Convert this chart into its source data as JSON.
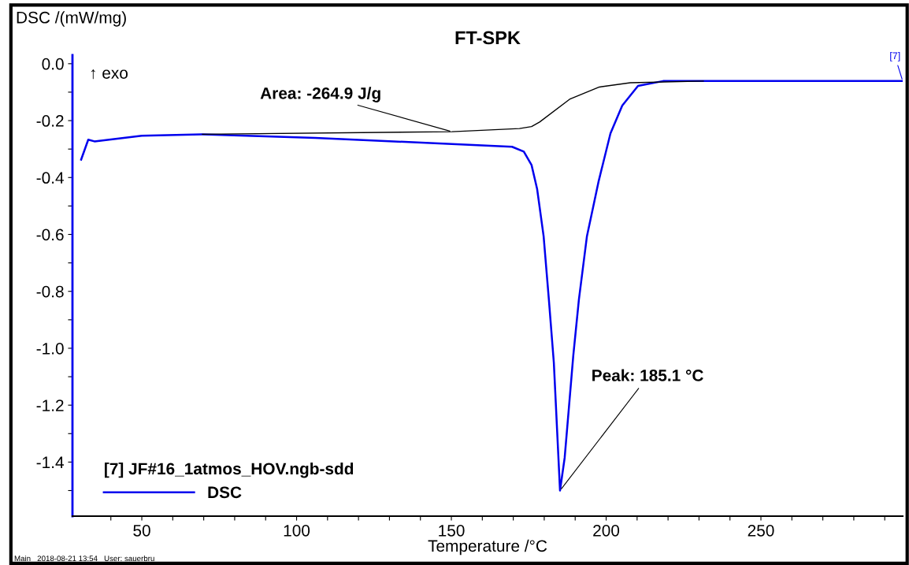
{
  "chart_data": {
    "type": "line",
    "title": "FT-SPK",
    "xlabel": "Temperature /°C",
    "ylabel": "DSC /(mW/mg)",
    "legend_title": "[7] JF#16_1atmos_HOV.ngb-sdd",
    "legend": "bottom left",
    "grid": false,
    "xlim": [
      27.6,
      295.8
    ],
    "ylim": [
      -1.59,
      0.03
    ],
    "xticks": [
      {
        "value": 40,
        "label": null
      },
      50,
      {
        "value": 60,
        "label": null
      },
      {
        "value": 70,
        "label": null
      },
      {
        "value": 80,
        "label": null
      },
      {
        "value": 90,
        "label": null
      },
      100,
      {
        "value": 110,
        "label": null
      },
      {
        "value": 120,
        "label": null
      },
      {
        "value": 130,
        "label": null
      },
      {
        "value": 140,
        "label": null
      },
      150,
      {
        "value": 160,
        "label": null
      },
      {
        "value": 170,
        "label": null
      },
      {
        "value": 180,
        "label": null
      },
      {
        "value": 190,
        "label": null
      },
      200,
      {
        "value": 210,
        "label": null
      },
      {
        "value": 220,
        "label": null
      },
      {
        "value": 230,
        "label": null
      },
      {
        "value": 240,
        "label": null
      },
      250,
      {
        "value": 260,
        "label": null
      },
      {
        "value": 270,
        "label": null
      },
      {
        "value": 280,
        "label": null
      },
      {
        "value": 290,
        "label": null
      }
    ],
    "yticks": [
      {
        "value": 0,
        "label": "0.0"
      },
      {
        "value": -0.1,
        "label": null
      },
      {
        "value": -0.2,
        "label": "-0.2"
      },
      {
        "value": -0.3,
        "label": null
      },
      {
        "value": -0.4,
        "label": "-0.4"
      },
      {
        "value": -0.5,
        "label": null
      },
      {
        "value": -0.6,
        "label": "-0.6"
      },
      {
        "value": -0.7,
        "label": null
      },
      {
        "value": -0.8,
        "label": "-0.8"
      },
      {
        "value": -0.9,
        "label": null
      },
      {
        "value": -1.0,
        "label": "-1.0"
      },
      {
        "value": -1.1,
        "label": null
      },
      {
        "value": -1.2,
        "label": "-1.2"
      },
      {
        "value": -1.3,
        "label": null
      },
      {
        "value": -1.4,
        "label": "-1.4"
      },
      {
        "value": -1.5,
        "label": null
      }
    ],
    "series": [
      {
        "name": "DSC",
        "color": "#0000ee",
        "x": [
          30.4,
          32.7,
          34.7,
          50,
          69.6,
          106,
          131.4,
          169.6,
          173.4,
          175.9,
          177.7,
          179.8,
          181.5,
          183.1,
          185.1,
          186.6,
          187.9,
          189.4,
          191.2,
          193.8,
          197.6,
          201.4,
          205.2,
          210.3,
          218.4,
          295.8
        ],
        "values": [
          -0.337,
          -0.267,
          -0.273,
          -0.253,
          -0.248,
          -0.261,
          -0.273,
          -0.292,
          -0.309,
          -0.356,
          -0.44,
          -0.606,
          -0.829,
          -1.05,
          -1.5,
          -1.385,
          -1.218,
          -1.024,
          -0.829,
          -0.606,
          -0.412,
          -0.245,
          -0.147,
          -0.078,
          -0.061,
          -0.061
        ]
      },
      {
        "color": "#000000",
        "x": [
          69.6,
          150.2,
          172,
          175.9,
          178.5,
          188.2,
          197.8,
          207.8,
          231.4
        ],
        "values": [
          -0.248,
          -0.239,
          -0.228,
          -0.221,
          -0.205,
          -0.125,
          -0.082,
          -0.067,
          -0.061
        ]
      }
    ],
    "annotations": [
      "↑ exo",
      {
        "text": "Area: -264.9 J/g",
        "x": 150.2,
        "y": -0.239
      },
      {
        "text": "Peak: 185.1 °C",
        "x": 185.1,
        "y": -1.5
      },
      {
        "text": "[7]",
        "x": 295.8,
        "y": -0.061
      },
      "Main   2018-08-21 13:54   User: sauerbru"
    ]
  }
}
